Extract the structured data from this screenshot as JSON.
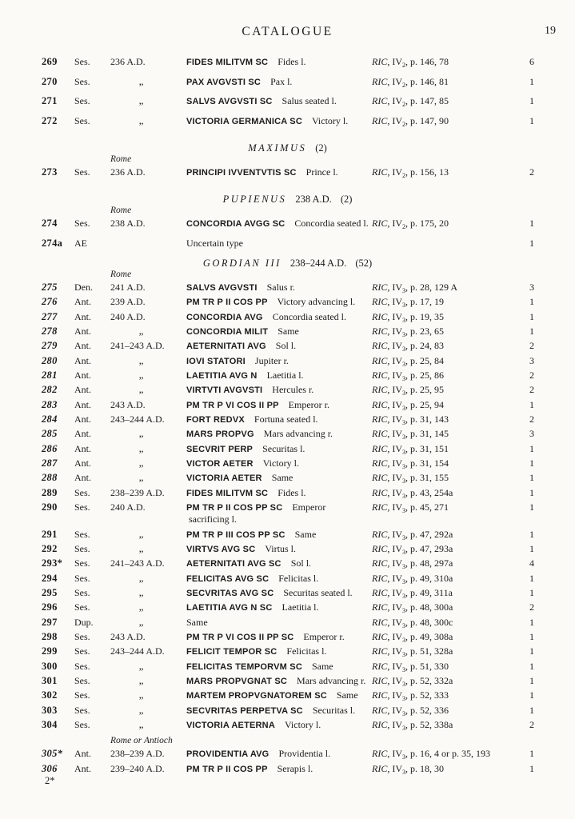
{
  "page": {
    "header_title": "CATALOGUE",
    "page_number": "19",
    "footer_mark": "2*"
  },
  "sections": [
    {
      "id": "maximinus",
      "heading": null,
      "rows": [
        {
          "label": "269",
          "italic": false,
          "denom": "Ses.",
          "date": "236 A.D.",
          "legend": "FIDES MILITVM SC",
          "desc": "Fides l.",
          "ref": {
            "work": "RIC",
            "volume": "IV",
            "sub": "2",
            "pages": "p. 146, 78"
          },
          "count": "6"
        },
        {
          "label": "270",
          "italic": false,
          "denom": "Ses.",
          "date": "„",
          "legend": "PAX AVGVSTI SC",
          "desc": "Pax l.",
          "ref": {
            "work": "RIC",
            "volume": "IV",
            "sub": "2",
            "pages": "p. 146, 81"
          },
          "count": "1"
        },
        {
          "label": "271",
          "italic": false,
          "denom": "Ses.",
          "date": "„",
          "legend": "SALVS AVGVSTI SC",
          "desc": "Salus seated l.",
          "ref": {
            "work": "RIC",
            "volume": "IV",
            "sub": "2",
            "pages": "p. 147, 85"
          },
          "count": "1"
        },
        {
          "label": "272",
          "italic": false,
          "denom": "Ses.",
          "date": "„",
          "legend": "VICTORIA GERMANICA SC",
          "desc": "Victory l.",
          "ref": {
            "work": "RIC",
            "volume": "IV",
            "sub": "2",
            "pages": "p. 147, 90"
          },
          "count": "1"
        }
      ]
    },
    {
      "id": "maximus",
      "heading": {
        "name": "MAXIMUS",
        "date": "",
        "count": "(2)"
      },
      "rows": [
        {
          "label": "273",
          "italic": false,
          "place": "Rome",
          "denom": "Ses.",
          "date": "236 A.D.",
          "legend": "PRINCIPI IVVENTVTIS SC",
          "desc": "Prince l.",
          "ref": {
            "work": "RIC",
            "volume": "IV",
            "sub": "2",
            "pages": "p. 156, 13"
          },
          "count": "2"
        }
      ]
    },
    {
      "id": "pupienus",
      "heading": {
        "name": "PUPIENUS",
        "date": "238 A.D.",
        "count": "(2)"
      },
      "rows": [
        {
          "label": "274",
          "italic": false,
          "place": "Rome",
          "denom": "Ses.",
          "date": "238 A.D.",
          "legend": "CONCORDIA AVGG SC",
          "desc": "Concordia seated l.",
          "ref": {
            "work": "RIC",
            "volume": "IV",
            "sub": "2",
            "pages": "p. 175, 20"
          },
          "count": "1"
        },
        {
          "label": "274a",
          "italic": false,
          "denom": "AE",
          "date": "",
          "desc": "Uncertain type",
          "count": "1"
        }
      ]
    },
    {
      "id": "gordian",
      "heading": {
        "name": "GORDIAN III",
        "date": "238–244 A.D.",
        "count": "(52)"
      },
      "rows": [
        {
          "label": "275",
          "italic": true,
          "place": "Rome",
          "denom": "Den.",
          "date": "241 A.D.",
          "legend": "SALVS AVGVSTI",
          "desc": "Salus r.",
          "ref": {
            "work": "RIC",
            "volume": "IV",
            "sub": "3",
            "pages": "p. 28, 129 A"
          },
          "count": "3"
        },
        {
          "label": "276",
          "italic": true,
          "denom": "Ant.",
          "date": "239 A.D.",
          "legend": "PM TR P II COS PP",
          "desc": "Victory advancing l.",
          "ref": {
            "work": "RIC",
            "volume": "IV",
            "sub": "3",
            "pages": "p. 17, 19"
          },
          "count": "1"
        },
        {
          "label": "277",
          "italic": true,
          "denom": "Ant.",
          "date": "240 A.D.",
          "legend": "CONCORDIA AVG",
          "desc": "Concordia seated l.",
          "ref": {
            "work": "RIC",
            "volume": "IV",
            "sub": "3",
            "pages": "p. 19, 35"
          },
          "count": "1"
        },
        {
          "label": "278",
          "italic": true,
          "denom": "Ant.",
          "date": "„",
          "legend": "CONCORDIA MILIT",
          "desc": "Same",
          "ref": {
            "work": "RIC",
            "volume": "IV",
            "sub": "3",
            "pages": "p. 23, 65"
          },
          "count": "1"
        },
        {
          "label": "279",
          "italic": true,
          "denom": "Ant.",
          "date": "241–243 A.D.",
          "legend": "AETERNITATI AVG",
          "desc": "Sol l.",
          "ref": {
            "work": "RIC",
            "volume": "IV",
            "sub": "3",
            "pages": "p. 24, 83"
          },
          "count": "2"
        },
        {
          "label": "280",
          "italic": true,
          "denom": "Ant.",
          "date": "„",
          "legend": "IOVI STATORI",
          "desc": "Jupiter r.",
          "ref": {
            "work": "RIC",
            "volume": "IV",
            "sub": "3",
            "pages": "p. 25, 84"
          },
          "count": "3"
        },
        {
          "label": "281",
          "italic": true,
          "denom": "Ant.",
          "date": "„",
          "legend": "LAETITIA AVG N",
          "desc": "Laetitia l.",
          "ref": {
            "work": "RIC",
            "volume": "IV",
            "sub": "3",
            "pages": "p. 25, 86"
          },
          "count": "2"
        },
        {
          "label": "282",
          "italic": true,
          "denom": "Ant.",
          "date": "„",
          "legend": "VIRTVTI AVGVSTI",
          "desc": "Hercules r.",
          "ref": {
            "work": "RIC",
            "volume": "IV",
            "sub": "3",
            "pages": "p. 25, 95"
          },
          "count": "2"
        },
        {
          "label": "283",
          "italic": true,
          "denom": "Ant.",
          "date": "243 A.D.",
          "legend": "PM TR P VI COS II PP",
          "desc": "Emperor r.",
          "ref": {
            "work": "RIC",
            "volume": "IV",
            "sub": "3",
            "pages": "p. 25, 94"
          },
          "count": "1"
        },
        {
          "label": "284",
          "italic": true,
          "denom": "Ant.",
          "date": "243–244 A.D.",
          "legend": "FORT REDVX",
          "desc": "Fortuna seated l.",
          "ref": {
            "work": "RIC",
            "volume": "IV",
            "sub": "3",
            "pages": "p. 31, 143"
          },
          "count": "2"
        },
        {
          "label": "285",
          "italic": true,
          "denom": "Ant.",
          "date": "„",
          "legend": "MARS PROPVG",
          "desc": "Mars advancing r.",
          "ref": {
            "work": "RIC",
            "volume": "IV",
            "sub": "3",
            "pages": "p. 31, 145"
          },
          "count": "3"
        },
        {
          "label": "286",
          "italic": true,
          "denom": "Ant.",
          "date": "„",
          "legend": "SECVRIT PERP",
          "desc": "Securitas l.",
          "ref": {
            "work": "RIC",
            "volume": "IV",
            "sub": "3",
            "pages": "p. 31, 151"
          },
          "count": "1"
        },
        {
          "label": "287",
          "italic": true,
          "denom": "Ant.",
          "date": "„",
          "legend": "VICTOR AETER",
          "desc": "Victory l.",
          "ref": {
            "work": "RIC",
            "volume": "IV",
            "sub": "3",
            "pages": "p. 31, 154"
          },
          "count": "1"
        },
        {
          "label": "288",
          "italic": true,
          "denom": "Ant.",
          "date": "„",
          "legend": "VICTORIA AETER",
          "desc": "Same",
          "ref": {
            "work": "RIC",
            "volume": "IV",
            "sub": "3",
            "pages": "p. 31, 155"
          },
          "count": "1"
        },
        {
          "label": "289",
          "italic": false,
          "denom": "Ses.",
          "date": "238–239 A.D.",
          "legend": "FIDES MILITVM SC",
          "desc": "Fides l.",
          "ref": {
            "work": "RIC",
            "volume": "IV",
            "sub": "3",
            "pages": "p. 43, 254a"
          },
          "count": "1"
        },
        {
          "label": "290",
          "italic": false,
          "denom": "Ses.",
          "date": "240 A.D.",
          "legend": "PM TR P II COS PP SC",
          "desc": "Emperor",
          "desc2": "sacrificing l.",
          "ref": {
            "work": "RIC",
            "volume": "IV",
            "sub": "3",
            "pages": "p. 45, 271"
          },
          "count": "1"
        },
        {
          "label": "291",
          "italic": false,
          "denom": "Ses.",
          "date": "„",
          "legend": "PM TR P III COS PP SC",
          "desc": "Same",
          "ref": {
            "work": "RIC",
            "volume": "IV",
            "sub": "3",
            "pages": "p. 47, 292a"
          },
          "count": "1"
        },
        {
          "label": "292",
          "italic": false,
          "denom": "Ses.",
          "date": "„",
          "legend": "VIRTVS AVG SC",
          "desc": "Virtus l.",
          "ref": {
            "work": "RIC",
            "volume": "IV",
            "sub": "3",
            "pages": "p. 47, 293a"
          },
          "count": "1"
        },
        {
          "label": "293*",
          "italic": false,
          "denom": "Ses.",
          "date": "241–243 A.D.",
          "legend": "AETERNITATI AVG SC",
          "desc": "Sol l.",
          "ref": {
            "work": "RIC",
            "volume": "IV",
            "sub": "3",
            "pages": "p. 48, 297a"
          },
          "count": "4"
        },
        {
          "label": "294",
          "italic": false,
          "denom": "Ses.",
          "date": "„",
          "legend": "FELICITAS AVG SC",
          "desc": "Felicitas l.",
          "ref": {
            "work": "RIC",
            "volume": "IV",
            "sub": "3",
            "pages": "p. 49, 310a"
          },
          "count": "1"
        },
        {
          "label": "295",
          "italic": false,
          "denom": "Ses.",
          "date": "„",
          "legend": "SECVRITAS AVG SC",
          "desc": "Securitas seated l.",
          "ref": {
            "work": "RIC",
            "volume": "IV",
            "sub": "3",
            "pages": "p. 49, 311a"
          },
          "count": "1"
        },
        {
          "label": "296",
          "italic": false,
          "denom": "Ses.",
          "date": "„",
          "legend": "LAETITIA AVG N SC",
          "desc": "Laetitia l.",
          "ref": {
            "work": "RIC",
            "volume": "IV",
            "sub": "3",
            "pages": "p. 48, 300a"
          },
          "count": "2"
        },
        {
          "label": "297",
          "italic": false,
          "denom": "Dup.",
          "date": "„",
          "desc": "Same",
          "ref": {
            "work": "RIC",
            "volume": "IV",
            "sub": "3",
            "pages": "p. 48, 300c"
          },
          "count": "1"
        },
        {
          "label": "298",
          "italic": false,
          "denom": "Ses.",
          "date": "243 A.D.",
          "legend": "PM TR P VI COS II PP SC",
          "desc": "Emperor r.",
          "ref": {
            "work": "RIC",
            "volume": "IV",
            "sub": "3",
            "pages": "p. 49, 308a"
          },
          "count": "1"
        },
        {
          "label": "299",
          "italic": false,
          "denom": "Ses.",
          "date": "243–244 A.D.",
          "legend": "FELICIT TEMPOR SC",
          "desc": "Felicitas l.",
          "ref": {
            "work": "RIC",
            "volume": "IV",
            "sub": "3",
            "pages": "p. 51, 328a"
          },
          "count": "1"
        },
        {
          "label": "300",
          "italic": false,
          "denom": "Ses.",
          "date": "„",
          "legend": "FELICITAS TEMPORVM SC",
          "desc": "Same",
          "ref": {
            "work": "RIC",
            "volume": "IV",
            "sub": "3",
            "pages": "p. 51, 330"
          },
          "count": "1"
        },
        {
          "label": "301",
          "italic": false,
          "denom": "Ses.",
          "date": "„",
          "legend": "MARS PROPVGNAT SC",
          "desc": "Mars advancing r.",
          "ref": {
            "work": "RIC",
            "volume": "IV",
            "sub": "3",
            "pages": "p. 52, 332a"
          },
          "count": "1"
        },
        {
          "label": "302",
          "italic": false,
          "denom": "Ses.",
          "date": "„",
          "legend": "MARTEM PROPVGNATOREM SC",
          "desc": "Same",
          "ref": {
            "work": "RIC",
            "volume": "IV",
            "sub": "3",
            "pages": "p. 52, 333"
          },
          "count": "1"
        },
        {
          "label": "303",
          "italic": false,
          "denom": "Ses.",
          "date": "„",
          "legend": "SECVRITAS PERPETVA SC",
          "desc": "Securitas l.",
          "ref": {
            "work": "RIC",
            "volume": "IV",
            "sub": "3",
            "pages": "p. 52, 336"
          },
          "count": "1"
        },
        {
          "label": "304",
          "italic": false,
          "denom": "Ses.",
          "date": "„",
          "legend": "VICTORIA AETERNA",
          "desc": "Victory l.",
          "ref": {
            "work": "RIC",
            "volume": "IV",
            "sub": "3",
            "pages": "p. 52, 338a"
          },
          "count": "2"
        }
      ]
    },
    {
      "id": "antioch",
      "heading": null,
      "rows": [
        {
          "label": "305*",
          "italic": true,
          "place": "Rome or Antioch",
          "denom": "Ant.",
          "date": "238–239 A.D.",
          "legend": "PROVIDENTIA AVG",
          "desc": "Providentia l.",
          "ref": {
            "work": "RIC",
            "volume": "IV",
            "sub": "3",
            "pages": "p. 16, 4 or p. 35, 193"
          },
          "count": "1"
        },
        {
          "label": "306",
          "italic": true,
          "denom": "Ant.",
          "date": "239–240 A.D.",
          "legend": "PM TR P II COS PP",
          "desc": "Serapis l.",
          "ref": {
            "work": "RIC",
            "volume": "IV",
            "sub": "3",
            "pages": "p. 18, 30"
          },
          "count": "1"
        }
      ]
    }
  ]
}
